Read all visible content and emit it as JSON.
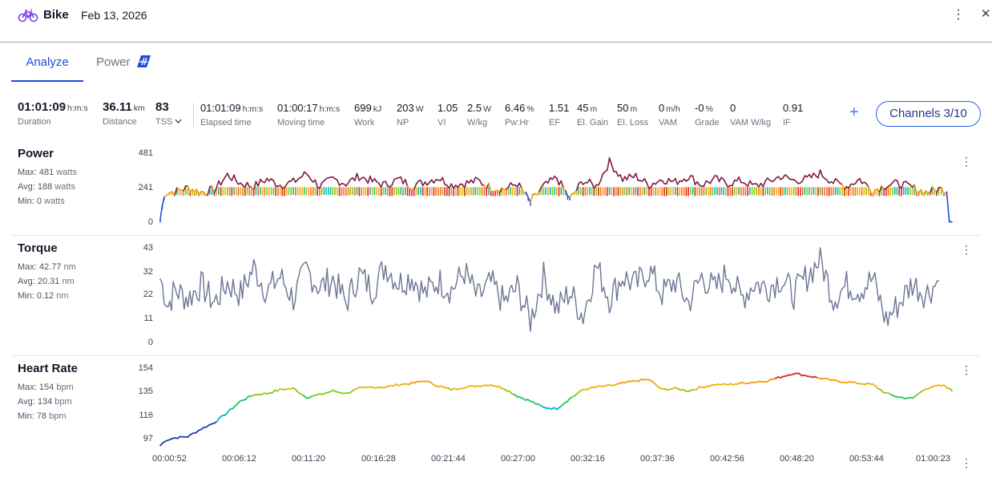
{
  "header": {
    "title": "Bike",
    "date": "Feb 13, 2026",
    "accent_color": "#7c3aed",
    "kebab_icon": "kebab-vertical-icon",
    "close_icon": "close-icon"
  },
  "tabs": [
    {
      "label": "Analyze",
      "active": true
    },
    {
      "label": "Power",
      "active": false,
      "badge_icon": "power-badge-icon"
    }
  ],
  "summary": {
    "primary": [
      {
        "value": "01:01:09",
        "unit": "h:m:s",
        "label": "Duration"
      },
      {
        "value": "36.11",
        "unit": "km",
        "label": "Distance"
      },
      {
        "value": "83",
        "unit": "",
        "label": "TSS"
      }
    ],
    "secondary": [
      {
        "value": "01:01:09",
        "unit": "h:m:s",
        "label": "Elapsed time"
      },
      {
        "value": "01:00:17",
        "unit": "h:m:s",
        "label": "Moving time"
      },
      {
        "value": "699",
        "unit": "kJ",
        "label": "Work"
      },
      {
        "value": "203",
        "unit": "W",
        "label": "NP"
      },
      {
        "value": "1.05",
        "unit": "",
        "label": "VI"
      },
      {
        "value": "2.5",
        "unit": "W",
        "label": "W/kg"
      },
      {
        "value": "6.46",
        "unit": "%",
        "label": "Pw:Hr"
      },
      {
        "value": "1.51",
        "unit": "",
        "label": "EF"
      },
      {
        "value": "45",
        "unit": "m",
        "label": "El. Gain"
      },
      {
        "value": "50",
        "unit": "m",
        "label": "El. Loss"
      },
      {
        "value": "0",
        "unit": "m/h",
        "label": "VAM"
      },
      {
        "value": "-0",
        "unit": "%",
        "label": "Grade"
      },
      {
        "value": "0",
        "unit": "",
        "label": "VAM W/kg"
      },
      {
        "value": "0.91",
        "unit": "",
        "label": "IF"
      }
    ],
    "add_icon": "plus-icon",
    "channels_label": "Channels 3/10"
  },
  "panels": [
    {
      "title": "Power",
      "stats": [
        {
          "label": "Max:",
          "value": "481",
          "unit": "watts"
        },
        {
          "label": "Avg:",
          "value": "188",
          "unit": "watts"
        },
        {
          "label": "Min:",
          "value": "0",
          "unit": "watts"
        }
      ],
      "ticks": [
        "481",
        "241",
        "0"
      ]
    },
    {
      "title": "Torque",
      "stats": [
        {
          "label": "Max:",
          "value": "42.77",
          "unit": "nm"
        },
        {
          "label": "Avg:",
          "value": "20.31",
          "unit": "nm"
        },
        {
          "label": "Min:",
          "value": "0.12",
          "unit": "nm"
        }
      ],
      "ticks": [
        "43",
        "32",
        "22",
        "11",
        "0"
      ]
    },
    {
      "title": "Heart Rate",
      "stats": [
        {
          "label": "Max:",
          "value": "154",
          "unit": "bpm"
        },
        {
          "label": "Avg:",
          "value": "134",
          "unit": "bpm"
        },
        {
          "label": "Min:",
          "value": "78",
          "unit": "bpm"
        }
      ],
      "ticks": [
        "154",
        "135",
        "116",
        "97"
      ]
    }
  ],
  "x_ticks": [
    "00:00:52",
    "00:06:12",
    "00:11:20",
    "00:16:28",
    "00:21:44",
    "00:27:00",
    "00:32:16",
    "00:37:36",
    "00:42:56",
    "00:48:20",
    "00:53:44",
    "01:00:23"
  ],
  "chart_data": [
    {
      "type": "area",
      "title": "Power",
      "ylabel": "watts",
      "ylim": [
        0,
        481
      ],
      "x_units": "minutes",
      "colors": {
        "high": "#7f1d3f",
        "mid": [
          "#dc2626",
          "#f97316",
          "#eab308",
          "#84cc16",
          "#14b8a6"
        ],
        "low": "#1d4ed8"
      },
      "x": [
        0.9,
        1.2,
        2,
        3,
        4,
        5,
        6,
        7,
        8,
        9,
        10,
        11,
        12,
        13,
        14,
        15,
        16,
        17,
        18,
        19,
        20,
        21,
        22,
        23,
        24,
        25,
        26,
        27,
        28,
        29,
        30,
        31,
        32,
        33,
        34,
        35,
        36,
        37,
        38,
        39,
        40,
        41,
        42,
        43,
        44,
        45,
        46,
        47,
        48,
        49,
        50,
        51,
        52,
        53,
        54,
        55,
        56,
        57,
        58,
        59,
        60,
        60.6,
        60.8,
        61
      ],
      "values": [
        20,
        200,
        215,
        240,
        210,
        225,
        330,
        270,
        250,
        300,
        260,
        280,
        340,
        250,
        300,
        270,
        320,
        285,
        260,
        300,
        255,
        280,
        310,
        260,
        270,
        290,
        240,
        230,
        270,
        140,
        250,
        310,
        160,
        290,
        250,
        420,
        300,
        320,
        260,
        300,
        280,
        320,
        260,
        300,
        270,
        290,
        250,
        280,
        320,
        290,
        300,
        340,
        280,
        250,
        300,
        220,
        260,
        270,
        240,
        210,
        230,
        225,
        30,
        0
      ]
    },
    {
      "type": "line",
      "title": "Torque",
      "ylabel": "nm",
      "ylim": [
        0,
        43
      ],
      "x_units": "minutes",
      "color": "#6b7694",
      "x": [
        0.9,
        1.5,
        2,
        3,
        4,
        5,
        6,
        7,
        8,
        9,
        10,
        11,
        12,
        13,
        14,
        15,
        16,
        17,
        18,
        19,
        20,
        21,
        22,
        23,
        24,
        25,
        26,
        27,
        28,
        29,
        30,
        31,
        32,
        33,
        34,
        35,
        36,
        37,
        38,
        39,
        40,
        41,
        42,
        43,
        44,
        45,
        46,
        47,
        48,
        49,
        50,
        51,
        52,
        53,
        54,
        55,
        56,
        57,
        58,
        59,
        60
      ],
      "values": [
        29,
        17,
        24,
        20,
        26,
        18,
        27,
        22,
        34,
        23,
        30,
        20,
        33,
        25,
        29,
        18,
        31,
        24,
        35,
        27,
        30,
        22,
        28,
        24,
        32,
        20,
        27,
        18,
        25,
        10,
        30,
        15,
        23,
        12,
        35,
        20,
        30,
        26,
        33,
        22,
        28,
        18,
        30,
        24,
        32,
        20,
        27,
        25,
        29,
        22,
        30,
        38,
        20,
        26,
        24,
        29,
        10,
        18,
        27,
        22,
        28
      ]
    },
    {
      "type": "line",
      "title": "Heart Rate",
      "ylabel": "bpm",
      "ylim": [
        92,
        154
      ],
      "x_units": "minutes",
      "color_scale": "heart-rate gradient (blue low to red high)",
      "x": [
        0.9,
        1.3,
        2,
        3,
        4,
        5,
        6,
        7,
        8,
        9,
        10,
        11,
        12,
        13,
        14,
        15,
        16,
        17,
        18,
        19,
        20,
        21,
        22,
        23,
        24,
        25,
        26,
        27,
        28,
        29,
        30,
        31,
        32,
        33,
        34,
        35,
        36,
        37,
        38,
        39,
        40,
        41,
        42,
        43,
        44,
        45,
        46,
        47,
        48,
        49,
        50,
        51,
        52,
        53,
        54,
        55,
        56,
        57,
        58,
        59,
        60,
        60.5,
        61
      ],
      "values": [
        93,
        97,
        99,
        100,
        106,
        111,
        119,
        128,
        133,
        134,
        137,
        138,
        131,
        133,
        136,
        134,
        138,
        139,
        139,
        141,
        142,
        144,
        140,
        137,
        139,
        140,
        141,
        138,
        132,
        128,
        123,
        122,
        130,
        137,
        139,
        140,
        142,
        144,
        145,
        137,
        138,
        136,
        139,
        141,
        141,
        142,
        143,
        144,
        147,
        150,
        148,
        146,
        144,
        143,
        142,
        141,
        134,
        131,
        130,
        138,
        140,
        140,
        136
      ]
    }
  ]
}
